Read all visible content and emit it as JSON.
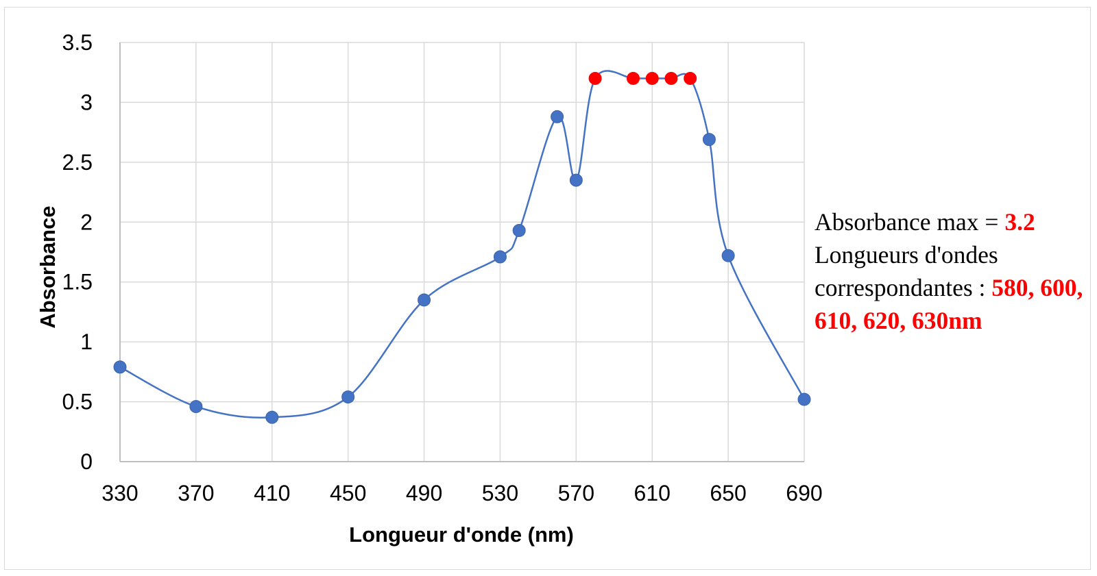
{
  "chart_data": {
    "type": "scatter",
    "xlabel": "Longueur d'onde (nm)",
    "ylabel": "Absorbance",
    "xlim": [
      330,
      690
    ],
    "ylim": [
      0,
      3.5
    ],
    "x_ticks": [
      "330",
      "370",
      "410",
      "450",
      "490",
      "530",
      "570",
      "610",
      "650",
      "690"
    ],
    "y_ticks": [
      "0",
      "0.5",
      "1",
      "1.5",
      "2",
      "2.5",
      "3",
      "3.5"
    ],
    "grid": true,
    "smooth_line": true,
    "line_color": "#4472C4",
    "marker_color": "#4472C4",
    "highlight_color": "#FF0000",
    "series": [
      {
        "x": [
          330,
          370,
          410,
          450,
          490,
          530,
          540,
          560,
          570,
          580,
          600,
          610,
          620,
          630,
          640,
          650,
          690
        ],
        "y": [
          0.79,
          0.46,
          0.37,
          0.54,
          1.35,
          1.71,
          1.93,
          2.88,
          2.35,
          3.2,
          3.2,
          3.2,
          3.2,
          3.2,
          2.69,
          1.72,
          0.52
        ],
        "highlighted": [
          false,
          false,
          false,
          false,
          false,
          false,
          false,
          false,
          false,
          true,
          true,
          true,
          true,
          true,
          false,
          false,
          false
        ]
      }
    ]
  },
  "annotation": {
    "line1_prefix": "Absorbance max = ",
    "line1_value": "3.2",
    "line2": "Longueurs d'ondes correspondantes : ",
    "wavelengths": "580, 600, 610, 620, 630nm"
  }
}
